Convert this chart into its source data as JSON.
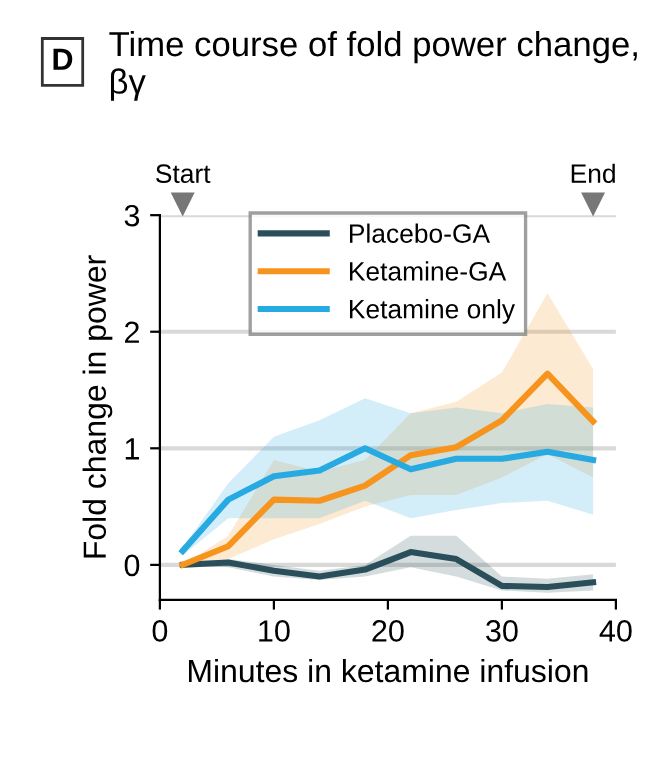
{
  "chart_data": {
    "type": "line",
    "title": "Time course of fold power change, βγ",
    "xlabel": "Minutes in ketamine infusion",
    "ylabel": "Fold change in power",
    "annotations": [
      "D",
      "Start",
      "End"
    ],
    "x": [
      2,
      6,
      10,
      14,
      18,
      22,
      26,
      30,
      34,
      38
    ],
    "series": [
      {
        "name": "Placebo-GA",
        "color": "#2a4f5a",
        "values": [
          0,
          0.02,
          -0.05,
          -0.1,
          -0.04,
          0.11,
          0.05,
          -0.18,
          -0.19,
          -0.15
        ],
        "lower": [
          0,
          -0.02,
          -0.1,
          -0.13,
          -0.1,
          -0.02,
          -0.1,
          -0.22,
          -0.24,
          -0.22
        ],
        "upper": [
          0,
          0.05,
          0,
          -0.05,
          0,
          0.25,
          0.25,
          -0.1,
          -0.12,
          -0.08
        ]
      },
      {
        "name": "Ketamine-GA",
        "color": "#f7941d",
        "values": [
          0,
          0.16,
          0.56,
          0.55,
          0.68,
          0.94,
          1.01,
          1.24,
          1.64,
          1.23
        ],
        "lower": [
          0,
          0.05,
          0.22,
          0.35,
          0.5,
          0.6,
          0.6,
          0.75,
          0.95,
          0.75
        ],
        "upper": [
          0,
          0.25,
          0.9,
          0.8,
          0.9,
          1.3,
          1.4,
          1.65,
          2.33,
          1.68
        ]
      },
      {
        "name": "Ketamine only",
        "color": "#27aae1",
        "values": [
          0.12,
          0.56,
          0.76,
          0.81,
          1.0,
          0.82,
          0.91,
          0.91,
          0.97,
          0.9
        ],
        "lower": [
          0.08,
          0.4,
          0.4,
          0.4,
          0.55,
          0.4,
          0.47,
          0.53,
          0.55,
          0.43
        ],
        "upper": [
          0.15,
          0.7,
          1.1,
          1.24,
          1.43,
          1.3,
          1.35,
          1.3,
          1.38,
          1.35
        ]
      }
    ],
    "xlim": [
      0,
      40
    ],
    "xticks": [
      0,
      10,
      20,
      30,
      40
    ],
    "ylim": [
      -0.3,
      3
    ],
    "yticks": [
      0,
      1,
      2,
      3
    ],
    "grid": "y",
    "legend": "top",
    "line_style": "solid"
  }
}
